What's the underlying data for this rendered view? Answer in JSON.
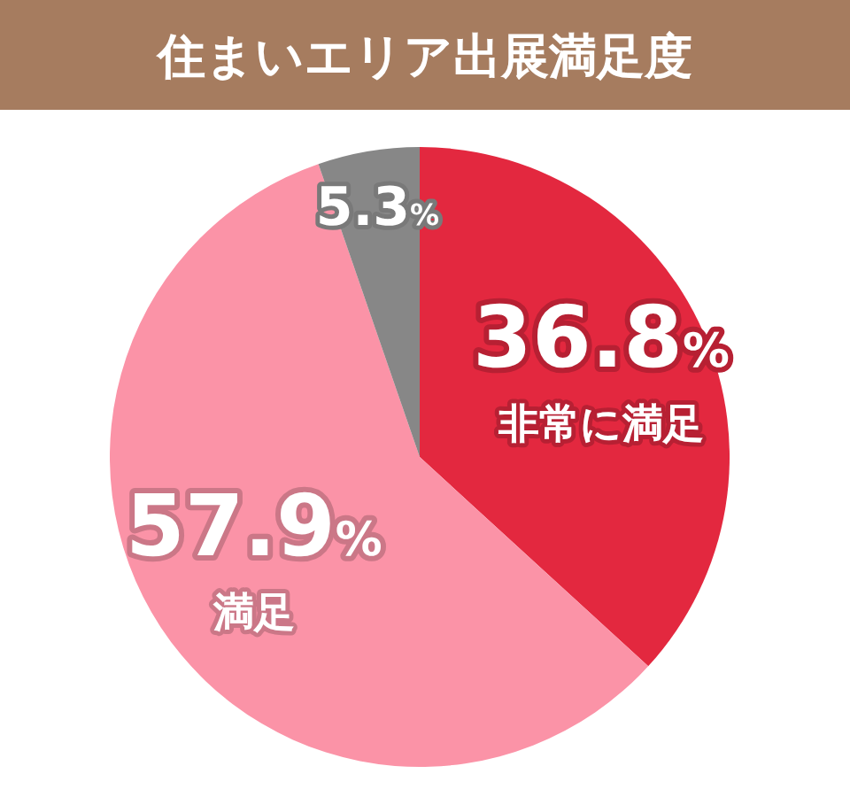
{
  "chart_data": {
    "type": "pie",
    "title": "住まいエリア出展満足度",
    "categories": [
      "非常に満足",
      "満足",
      null
    ],
    "values": [
      36.8,
      57.9,
      5.3
    ],
    "colors": [
      "#e3283f",
      "#fb93a7",
      "#878787"
    ],
    "value_labels": [
      "36.8%",
      "57.9%",
      "5.3%"
    ]
  }
}
